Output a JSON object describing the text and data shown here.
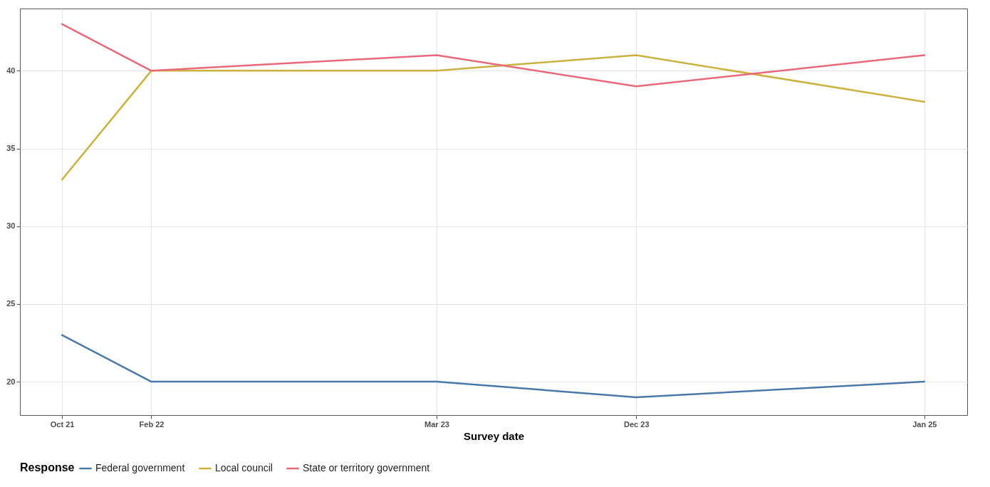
{
  "chart_data": {
    "type": "line",
    "xlabel": "Survey date",
    "legend_title": "Response",
    "x": [
      "2021-10",
      "2022-02",
      "2023-03",
      "2023-12",
      "2025-01"
    ],
    "xlim": [
      "2021-08-04",
      "2025-03-01"
    ],
    "xticks": [
      {
        "value": "2021-10",
        "label": "Oct 21"
      },
      {
        "value": "2022-02",
        "label": "Feb 22"
      },
      {
        "value": "2023-03",
        "label": "Mar 23"
      },
      {
        "value": "2023-12",
        "label": "Dec 23"
      },
      {
        "value": "2025-01",
        "label": "Jan 25"
      }
    ],
    "ylim": [
      17.85,
      44
    ],
    "yticks": [
      20,
      25,
      30,
      35,
      40
    ],
    "grid": true,
    "legend": "bottom",
    "marker": "none",
    "line_style": "solid",
    "series": [
      {
        "name": "Federal government",
        "color": "#4a79a8",
        "values": [
          23,
          20,
          20,
          19,
          20
        ]
      },
      {
        "name": "Local council",
        "color": "#c9b23e",
        "values": [
          33,
          40,
          40,
          41,
          38
        ]
      },
      {
        "name": "State or territory government",
        "color": "#e8697a",
        "values": [
          43,
          40,
          41,
          39,
          41
        ]
      }
    ]
  }
}
